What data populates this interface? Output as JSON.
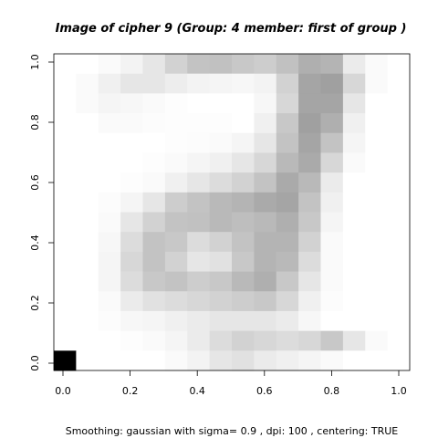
{
  "chart_data": {
    "type": "heatmap",
    "title": "Image of cipher  9 (Group:  4  member:  first of group )",
    "subtitle": "Smoothing:  gaussian with sigma= 0.9 , dpi: 100 , centering: TRUE",
    "xlabel": "",
    "ylabel": "",
    "xlim": [
      0.0,
      1.0
    ],
    "ylim": [
      0.0,
      1.0
    ],
    "x_ticks": [
      "0.0",
      "0.2",
      "0.4",
      "0.6",
      "0.8",
      "1.0"
    ],
    "y_ticks": [
      "0.0",
      "0.2",
      "0.4",
      "0.6",
      "0.8",
      "1.0"
    ],
    "grid": false,
    "colormap": "grayscale (0 = white, 255 = black)",
    "rows": 16,
    "cols": 16,
    "note": "values[0] is the top row (y near 1.0), values[15] is the bottom row (y near 0.0)",
    "values": [
      [
        0,
        0,
        5,
        12,
        25,
        45,
        60,
        62,
        55,
        50,
        62,
        80,
        75,
        20,
        5,
        0
      ],
      [
        0,
        5,
        15,
        25,
        25,
        18,
        12,
        10,
        8,
        12,
        45,
        90,
        95,
        40,
        5,
        0
      ],
      [
        0,
        5,
        10,
        8,
        5,
        2,
        0,
        0,
        0,
        8,
        40,
        90,
        90,
        25,
        0,
        0
      ],
      [
        0,
        0,
        5,
        5,
        3,
        2,
        2,
        2,
        0,
        15,
        55,
        95,
        80,
        15,
        0,
        0
      ],
      [
        0,
        0,
        0,
        0,
        0,
        2,
        3,
        5,
        10,
        25,
        60,
        90,
        60,
        10,
        0,
        0
      ],
      [
        0,
        0,
        0,
        0,
        2,
        5,
        10,
        15,
        25,
        40,
        70,
        85,
        40,
        5,
        0,
        0
      ],
      [
        0,
        0,
        0,
        2,
        5,
        15,
        25,
        35,
        45,
        60,
        85,
        70,
        20,
        0,
        0,
        0
      ],
      [
        0,
        0,
        3,
        10,
        25,
        50,
        60,
        70,
        75,
        85,
        90,
        60,
        15,
        0,
        0,
        0
      ],
      [
        0,
        0,
        5,
        25,
        45,
        60,
        62,
        70,
        65,
        70,
        80,
        55,
        10,
        0,
        0,
        0
      ],
      [
        0,
        0,
        8,
        35,
        60,
        55,
        35,
        45,
        60,
        75,
        75,
        45,
        5,
        0,
        0,
        0
      ],
      [
        0,
        0,
        10,
        40,
        60,
        45,
        25,
        30,
        55,
        75,
        70,
        35,
        5,
        0,
        0,
        0
      ],
      [
        0,
        0,
        10,
        35,
        55,
        60,
        50,
        55,
        70,
        80,
        55,
        25,
        5,
        0,
        0,
        0
      ],
      [
        0,
        0,
        5,
        20,
        30,
        35,
        40,
        45,
        50,
        55,
        40,
        15,
        3,
        0,
        0,
        0
      ],
      [
        0,
        0,
        3,
        8,
        10,
        15,
        20,
        25,
        25,
        25,
        20,
        8,
        0,
        0,
        0,
        0
      ],
      [
        0,
        0,
        0,
        2,
        5,
        10,
        20,
        35,
        45,
        40,
        35,
        40,
        55,
        25,
        5,
        0
      ],
      [
        255,
        0,
        0,
        0,
        0,
        5,
        12,
        25,
        30,
        20,
        15,
        10,
        5,
        0,
        0,
        0
      ]
    ]
  }
}
